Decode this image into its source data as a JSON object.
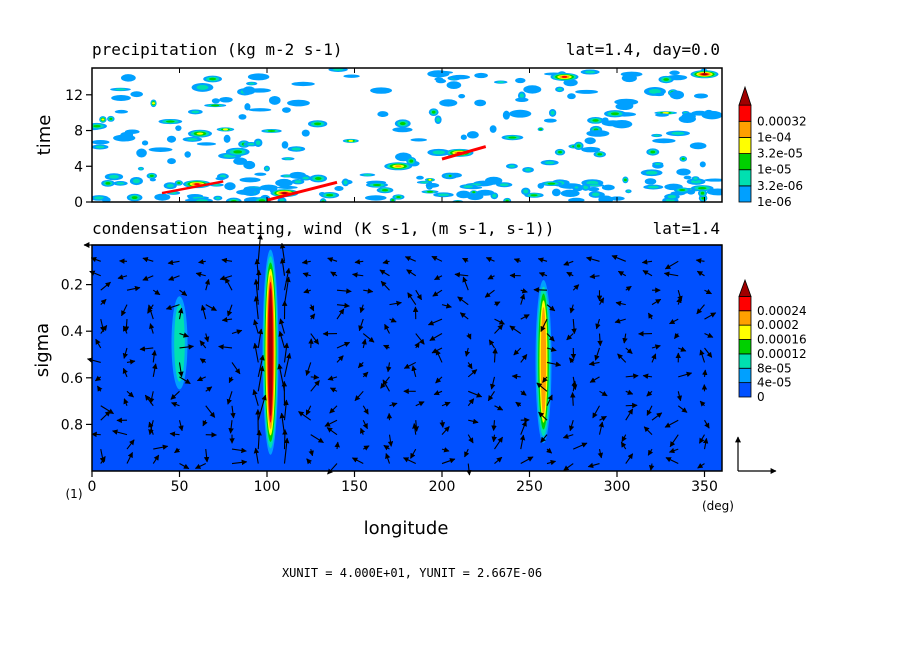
{
  "chart_data": [
    {
      "type": "heatmap",
      "title": "precipitation (kg m-2 s-1)",
      "subtitle": "lat=1.4, day=0.0",
      "xlabel": "",
      "ylabel": "time",
      "xlim": [
        0,
        360
      ],
      "ylim": [
        0,
        15
      ],
      "yticks": [
        0,
        4,
        8,
        12
      ],
      "legend": {
        "position": "right",
        "levels": [
          "1e-06",
          "3.2e-06",
          "1e-05",
          "3.2e-05",
          "1e-04",
          "0.00032"
        ],
        "colors": [
          "#00a0ff",
          "#00e0b0",
          "#00d000",
          "#ffff00",
          "#ffa000",
          "#ff0000",
          "#a00000"
        ]
      },
      "features": [
        {
          "x": 110,
          "y": 1.0,
          "value": "0.00032"
        },
        {
          "x": 60,
          "y": 2.0,
          "value": "1e-04"
        },
        {
          "x": 210,
          "y": 5.5,
          "value": "1e-04"
        },
        {
          "x": 175,
          "y": 4.0,
          "value": "3.2e-05"
        },
        {
          "x": 270,
          "y": 14.0,
          "value": "1e-04"
        },
        {
          "x": 350,
          "y": 14.3,
          "value": "0.00032"
        }
      ]
    },
    {
      "type": "heatmap",
      "title": "condensation heating, wind (K s-1, (m s-1, s-1))",
      "subtitle": "lat=1.4",
      "xlabel": "longitude",
      "ylabel": "sigma",
      "xlim": [
        0,
        360
      ],
      "ylim": [
        1.0,
        0.03
      ],
      "xticks": [
        0,
        50,
        100,
        150,
        200,
        250,
        300,
        350
      ],
      "yticks": [
        0.2,
        0.4,
        0.6,
        0.8
      ],
      "x_unit_label": "(deg)",
      "panel_label": "(1)",
      "legend": {
        "position": "right",
        "levels": [
          "0",
          "4e-05",
          "8e-05",
          "0.00012",
          "0.00016",
          "0.0002",
          "0.00024"
        ],
        "colors": [
          "#0050ff",
          "#00a0ff",
          "#00e0b0",
          "#00d000",
          "#ffff00",
          "#ffa000",
          "#ff0000",
          "#a00000"
        ]
      },
      "heating_columns": [
        {
          "x": 102,
          "sigma_top": 0.05,
          "sigma_bottom": 0.93,
          "peak": "0.00024"
        },
        {
          "x": 258,
          "sigma_top": 0.18,
          "sigma_bottom": 0.88,
          "peak": "0.00016"
        },
        {
          "x": 50,
          "sigma_top": 0.25,
          "sigma_bottom": 0.65,
          "peak": "4e-05"
        }
      ],
      "vector_units": "XUNIT = 4.000E+01, YUNIT = 2.667E-06"
    }
  ]
}
